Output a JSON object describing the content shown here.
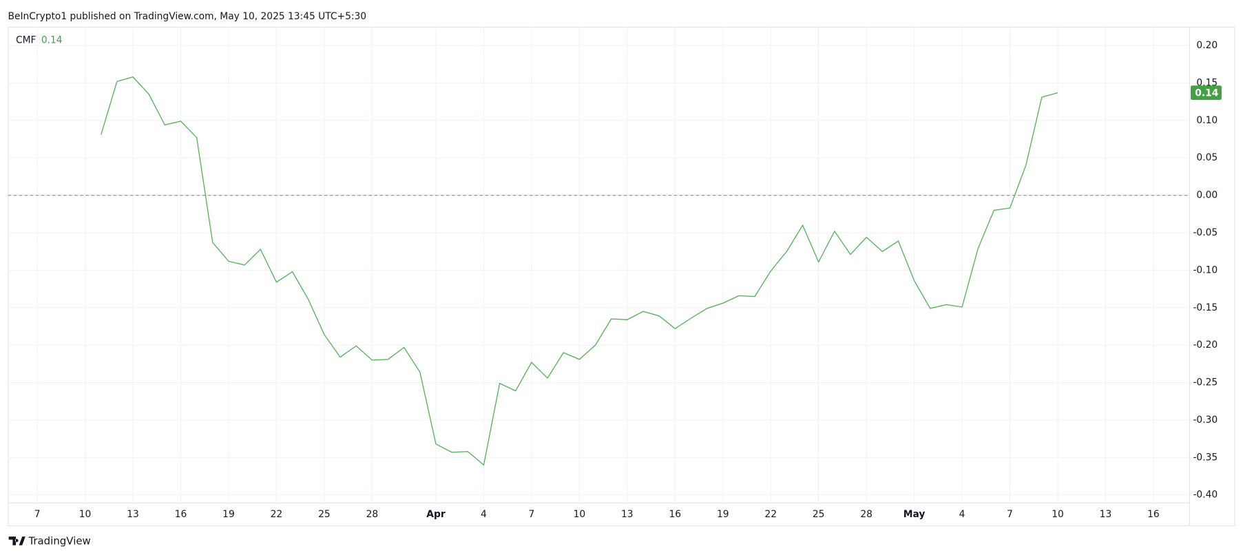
{
  "header": {
    "text": "BeInCrypto1 published on TradingView.com, May 10, 2025 13:45 UTC+5:30"
  },
  "footer": {
    "brand": "TradingView"
  },
  "chart_data": {
    "type": "line",
    "title": "CMF",
    "current_value_label": "0.14",
    "categories": [
      "7",
      null,
      null,
      "10",
      null,
      null,
      "13",
      null,
      null,
      "16",
      null,
      null,
      "19",
      null,
      null,
      "22",
      null,
      null,
      "25",
      null,
      null,
      "28",
      null,
      null,
      null,
      "Apr",
      null,
      null,
      "4",
      null,
      null,
      "7",
      null,
      null,
      "10",
      null,
      null,
      "13",
      null,
      null,
      "16",
      null,
      null,
      "19",
      null,
      null,
      "22",
      null,
      null,
      "25",
      null,
      null,
      "28",
      null,
      null,
      "May",
      null,
      null,
      "4",
      null,
      null,
      "7",
      null,
      null,
      "10",
      null,
      null,
      "13",
      null,
      null,
      "16"
    ],
    "series": [
      {
        "name": "CMF",
        "color": "#4caf50",
        "values": [
          null,
          null,
          null,
          null,
          0.081,
          0.152,
          0.158,
          0.135,
          0.094,
          0.099,
          0.077,
          -0.063,
          -0.088,
          -0.093,
          -0.072,
          -0.116,
          -0.102,
          -0.139,
          -0.186,
          -0.216,
          -0.201,
          -0.22,
          -0.219,
          -0.203,
          -0.236,
          -0.332,
          -0.343,
          -0.342,
          -0.36,
          -0.251,
          -0.261,
          -0.223,
          -0.244,
          -0.21,
          -0.219,
          -0.2,
          -0.165,
          -0.166,
          -0.155,
          -0.161,
          -0.178,
          -0.164,
          -0.151,
          -0.144,
          -0.134,
          -0.135,
          -0.101,
          -0.075,
          -0.04,
          -0.089,
          -0.048,
          -0.079,
          -0.056,
          -0.075,
          -0.061,
          -0.114,
          -0.151,
          -0.146,
          -0.149,
          -0.071,
          -0.02,
          -0.017,
          0.04,
          0.131,
          0.137,
          null,
          null,
          null,
          null,
          null,
          null
        ]
      }
    ],
    "ylim": [
      -0.41,
      0.225
    ],
    "yticks": [
      {
        "value": 0.2,
        "label": "0.20"
      },
      {
        "value": 0.15,
        "label": "0.15"
      },
      {
        "value": 0.1,
        "label": "0.10"
      },
      {
        "value": 0.05,
        "label": "0.05"
      },
      {
        "value": 0,
        "label": "0.00"
      },
      {
        "value": -0.05,
        "label": "-0.05"
      },
      {
        "value": -0.1,
        "label": "-0.10"
      },
      {
        "value": -0.15,
        "label": "-0.15"
      },
      {
        "value": -0.2,
        "label": "-0.20"
      },
      {
        "value": -0.25,
        "label": "-0.25"
      },
      {
        "value": -0.3,
        "label": "-0.30"
      },
      {
        "value": -0.35,
        "label": "-0.35"
      },
      {
        "value": -0.4,
        "label": "-0.40"
      }
    ],
    "hline": 0,
    "grid": true
  }
}
